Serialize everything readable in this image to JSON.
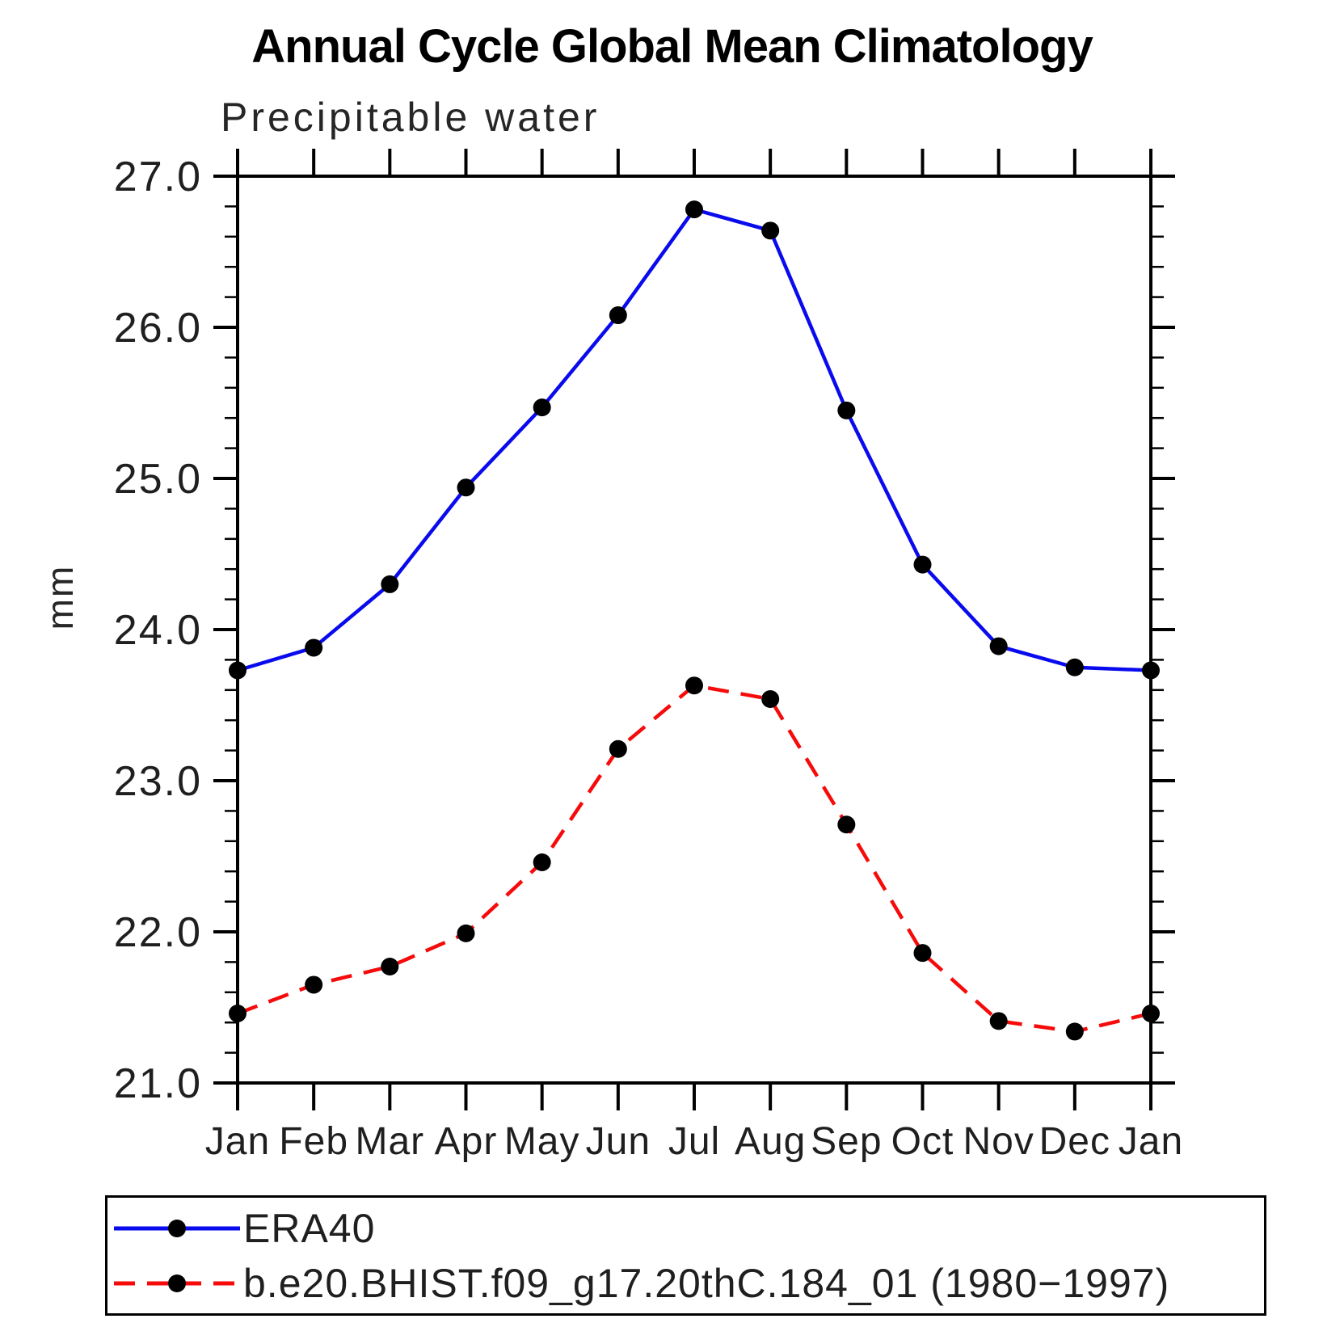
{
  "chart_data": {
    "type": "line",
    "title": "Annual Cycle Global Mean Climatology",
    "subtitle": "Precipitable water",
    "xlabel": "",
    "ylabel": "mm",
    "categories": [
      "Jan",
      "Feb",
      "Mar",
      "Apr",
      "May",
      "Jun",
      "Jul",
      "Aug",
      "Sep",
      "Oct",
      "Nov",
      "Dec",
      "Jan"
    ],
    "ylim": [
      21.0,
      27.0
    ],
    "ytick_step": 1.0,
    "ytick_minor_step": 0.2,
    "ytick_labels": [
      "21.0",
      "22.0",
      "23.0",
      "24.0",
      "25.0",
      "26.0",
      "27.0"
    ],
    "grid": false,
    "frame_color": "#000000",
    "legend_position": "bottom-left",
    "series": [
      {
        "name": "ERA40",
        "line_style": "solid",
        "color": "#0a0aee",
        "marker": "circle",
        "marker_color": "#000000",
        "values": [
          23.73,
          23.88,
          24.3,
          24.94,
          25.47,
          26.08,
          26.78,
          26.64,
          25.45,
          24.43,
          23.89,
          23.75,
          23.73
        ]
      },
      {
        "name": "b.e20.BHIST.f09_g17.20thC.184_01 (1980−1997)",
        "line_style": "dashed",
        "color": "#f60b0b",
        "marker": "circle",
        "marker_color": "#000000",
        "values": [
          21.46,
          21.65,
          21.77,
          21.99,
          22.46,
          23.21,
          23.63,
          23.54,
          22.71,
          21.86,
          21.41,
          21.34,
          21.46
        ]
      }
    ]
  }
}
